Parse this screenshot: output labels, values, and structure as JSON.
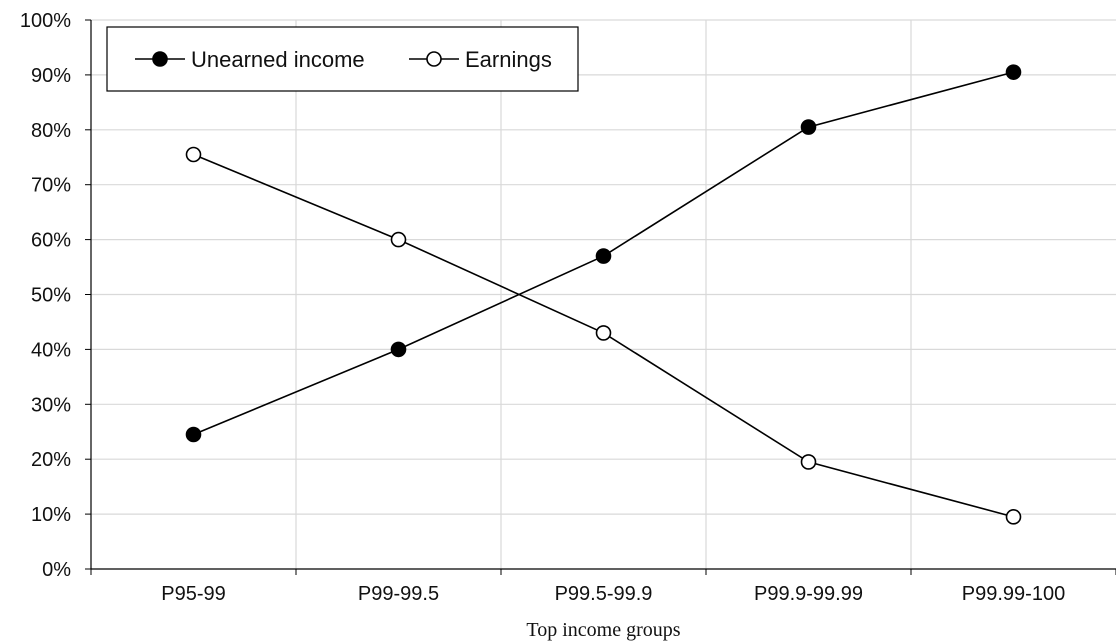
{
  "chart_data": {
    "type": "line",
    "title": "",
    "xlabel": "Top income groups",
    "ylabel": "",
    "categories": [
      "P95-99",
      "P99-99.5",
      "P99.5-99.9",
      "P99.9-99.99",
      "P99.99-100"
    ],
    "ylim": [
      0,
      100
    ],
    "yticks": [
      0,
      10,
      20,
      30,
      40,
      50,
      60,
      70,
      80,
      90,
      100
    ],
    "ytick_labels": [
      "0%",
      "10%",
      "20%",
      "30%",
      "40%",
      "50%",
      "60%",
      "70%",
      "80%",
      "90%",
      "100%"
    ],
    "grid": true,
    "legend": "top-left",
    "series": [
      {
        "name": "Unearned income",
        "values": [
          24.5,
          40,
          57,
          80.5,
          90.5
        ],
        "marker": "filled-circle",
        "color": "#000000"
      },
      {
        "name": "Earnings",
        "values": [
          75.5,
          60,
          43,
          19.5,
          9.5
        ],
        "marker": "open-circle",
        "color": "#000000"
      }
    ],
    "colors": {
      "grid": "#d9d9d9",
      "axis": "#000000",
      "line": "#000000"
    }
  }
}
